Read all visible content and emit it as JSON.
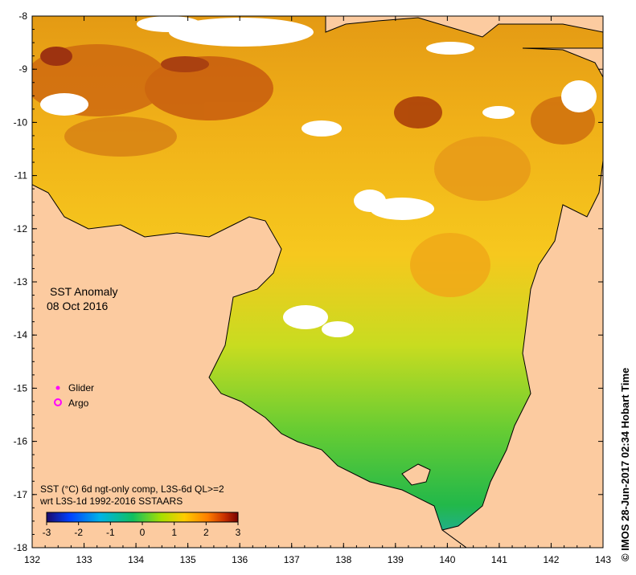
{
  "map": {
    "title": "SST Anomaly",
    "date": "08 Oct 2016",
    "x_ticks": [
      "132",
      "133",
      "134",
      "135",
      "136",
      "137",
      "138",
      "139",
      "140",
      "141",
      "142",
      "143"
    ],
    "y_ticks": [
      "-8",
      "-9",
      "-10",
      "-11",
      "-12",
      "-13",
      "-14",
      "-15",
      "-16",
      "-17",
      "-18"
    ],
    "x_range": [
      132,
      143
    ],
    "y_range": [
      -18,
      -8
    ],
    "colors": {
      "land": "#fccba0",
      "no_data": "#ffffff",
      "coast": "#000000"
    }
  },
  "legend": {
    "glider_label": "Glider",
    "argo_label": "Argo",
    "glider_color": "#ff00ff",
    "argo_color": "#ff00ff"
  },
  "colorbar": {
    "caption_line1": "SST (°C) 6d ngt-only comp, L3S-6d QL>=2",
    "caption_line2": "wrt L3S-1d 1992-2016 SSTAARS",
    "ticks": [
      "-3",
      "-2",
      "-1",
      "0",
      "1",
      "2",
      "3"
    ],
    "range": [
      -3,
      3
    ],
    "stops": [
      "#1a0a6b",
      "#0040ff",
      "#00b4e6",
      "#10c060",
      "#a8e000",
      "#ffcc00",
      "#ff8000",
      "#c83000",
      "#780000"
    ]
  },
  "credit": "© IMOS 28-Jun-2017 02:34 Hobart Time"
}
